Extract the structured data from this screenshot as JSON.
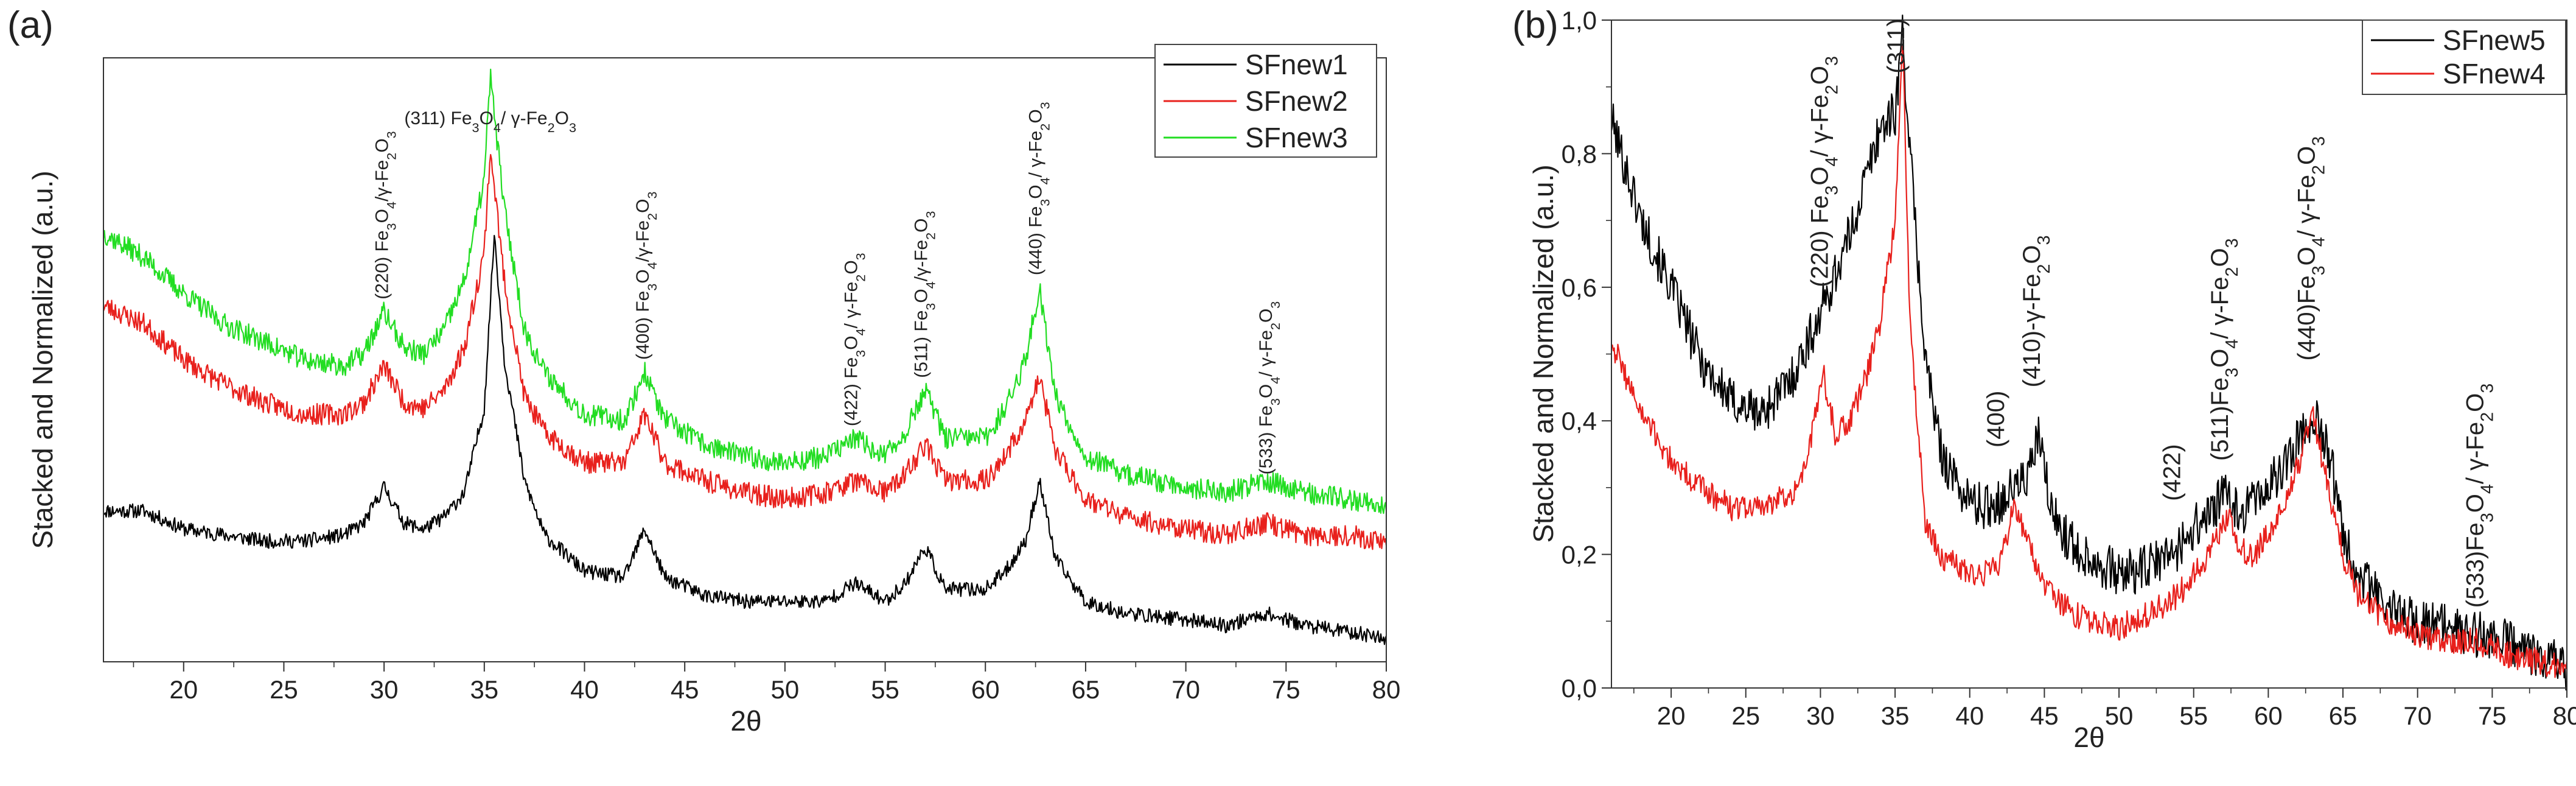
{
  "chart_data": [
    {
      "panel": "(a)",
      "type": "line",
      "xlabel": "2θ",
      "ylabel": "Stacked and Normalized (a.u.)",
      "xlim": [
        16,
        80
      ],
      "ylim": [
        0,
        1
      ],
      "x_ticks": [
        "20",
        "25",
        "30",
        "35",
        "40",
        "45",
        "50",
        "55",
        "60",
        "65",
        "70",
        "75",
        "80"
      ],
      "y_ticks": [],
      "legend_position": "top-right",
      "series": [
        {
          "name": "SFnew1",
          "color": "#000000",
          "x": [
            16,
            18,
            20,
            22,
            24,
            26,
            28,
            29,
            30,
            31,
            32,
            33,
            34,
            35,
            35.5,
            36,
            37,
            38,
            40,
            42,
            43,
            44,
            46,
            48,
            50,
            52,
            53.5,
            55,
            56,
            57,
            58,
            60,
            61,
            62,
            62.7,
            63.5,
            65,
            67,
            70,
            72,
            74,
            76,
            78,
            80
          ],
          "y": [
            0.25,
            0.25,
            0.22,
            0.21,
            0.2,
            0.2,
            0.21,
            0.23,
            0.29,
            0.23,
            0.22,
            0.24,
            0.28,
            0.42,
            0.71,
            0.5,
            0.3,
            0.21,
            0.15,
            0.14,
            0.22,
            0.14,
            0.11,
            0.1,
            0.1,
            0.1,
            0.13,
            0.1,
            0.13,
            0.19,
            0.12,
            0.12,
            0.15,
            0.2,
            0.3,
            0.17,
            0.1,
            0.08,
            0.07,
            0.06,
            0.08,
            0.06,
            0.05,
            0.04
          ]
        },
        {
          "name": "SFnew2",
          "color": "#e8201c",
          "x": [
            16,
            18,
            20,
            22,
            24,
            26,
            28,
            29,
            30,
            31,
            32,
            33,
            34,
            35,
            35.3,
            36,
            37,
            38,
            40,
            42,
            43,
            44,
            46,
            48,
            50,
            52,
            53.5,
            55,
            56,
            57,
            58,
            60,
            61,
            62,
            62.7,
            63.5,
            65,
            67,
            70,
            72,
            74,
            76,
            78,
            80
          ],
          "y": [
            0.59,
            0.56,
            0.5,
            0.46,
            0.43,
            0.41,
            0.41,
            0.43,
            0.49,
            0.43,
            0.42,
            0.45,
            0.52,
            0.68,
            0.85,
            0.63,
            0.44,
            0.38,
            0.33,
            0.33,
            0.41,
            0.33,
            0.3,
            0.28,
            0.27,
            0.28,
            0.3,
            0.28,
            0.31,
            0.36,
            0.3,
            0.3,
            0.34,
            0.4,
            0.47,
            0.35,
            0.27,
            0.24,
            0.22,
            0.21,
            0.23,
            0.21,
            0.21,
            0.2
          ]
        },
        {
          "name": "SFnew3",
          "color": "#22dd22",
          "x": [
            16,
            18,
            20,
            22,
            24,
            26,
            28,
            29,
            30,
            31,
            32,
            33,
            34,
            35,
            35.3,
            36,
            37,
            38,
            40,
            42,
            43,
            44,
            46,
            48,
            50,
            52,
            53.5,
            55,
            56,
            57,
            58,
            60,
            61,
            62,
            62.7,
            63.5,
            65,
            67,
            70,
            72,
            74,
            76,
            78,
            80
          ],
          "y": [
            0.71,
            0.67,
            0.61,
            0.56,
            0.53,
            0.5,
            0.49,
            0.51,
            0.58,
            0.52,
            0.51,
            0.55,
            0.63,
            0.8,
            0.97,
            0.75,
            0.55,
            0.48,
            0.41,
            0.4,
            0.48,
            0.4,
            0.36,
            0.34,
            0.33,
            0.34,
            0.37,
            0.34,
            0.38,
            0.45,
            0.37,
            0.37,
            0.42,
            0.5,
            0.62,
            0.44,
            0.34,
            0.31,
            0.29,
            0.28,
            0.3,
            0.28,
            0.27,
            0.26
          ]
        }
      ],
      "annotations": [
        {
          "text": "(220) Fe3O4/γ-Fe2O3",
          "x": 30.2,
          "y": 0.6,
          "rotate": true
        },
        {
          "text": "(311) Fe3O4/ γ-Fe2O3",
          "x": 35.3,
          "y": 0.89,
          "rotate": false
        },
        {
          "text": "(400) Fe3O4/γ-Fe2O3",
          "x": 43.2,
          "y": 0.5,
          "rotate": true
        },
        {
          "text": "(422) Fe3O4/ γ-Fe2O3",
          "x": 53.6,
          "y": 0.39,
          "rotate": true
        },
        {
          "text": "(511) Fe3O4/γ-Fe2O3",
          "x": 57.1,
          "y": 0.47,
          "rotate": true
        },
        {
          "text": "(440) Fe3O4/ γ-Fe2O3",
          "x": 62.8,
          "y": 0.64,
          "rotate": true
        },
        {
          "text": "(533) Fe3O4/ γ-Fe2O3",
          "x": 74.3,
          "y": 0.31,
          "rotate": true
        }
      ]
    },
    {
      "panel": "(b)",
      "type": "line",
      "xlabel": "2θ",
      "ylabel": "Stacked and Normalized  (a.u.)",
      "xlim": [
        16,
        80
      ],
      "ylim": [
        0,
        1
      ],
      "x_ticks": [
        "20",
        "25",
        "30",
        "35",
        "40",
        "45",
        "50",
        "55",
        "60",
        "65",
        "70",
        "75",
        "80"
      ],
      "y_ticks": [
        "0,0",
        "0,2",
        "0,4",
        "0,6",
        "0,8",
        "1,0"
      ],
      "legend_position": "top-right",
      "series": [
        {
          "name": "SFnew5",
          "color": "#000000",
          "x": [
            16,
            18,
            20,
            22,
            24,
            26,
            28,
            30,
            32,
            33,
            34,
            35,
            35.5,
            36,
            37,
            38,
            39,
            40,
            41,
            42,
            43,
            44,
            44.6,
            45.5,
            47,
            50,
            52,
            54,
            55,
            56,
            57.2,
            58,
            59,
            60,
            61,
            62,
            63,
            64,
            65,
            66,
            68,
            70,
            72,
            74,
            76,
            78,
            80
          ],
          "y": [
            0.85,
            0.7,
            0.6,
            0.49,
            0.43,
            0.41,
            0.46,
            0.56,
            0.68,
            0.76,
            0.84,
            0.86,
            0.98,
            0.8,
            0.5,
            0.36,
            0.31,
            0.28,
            0.27,
            0.28,
            0.3,
            0.32,
            0.38,
            0.26,
            0.21,
            0.17,
            0.18,
            0.21,
            0.24,
            0.26,
            0.29,
            0.26,
            0.28,
            0.3,
            0.33,
            0.37,
            0.41,
            0.36,
            0.24,
            0.17,
            0.12,
            0.1,
            0.09,
            0.08,
            0.07,
            0.05,
            0.03
          ]
        },
        {
          "name": "SFnew4",
          "color": "#e8201c",
          "x": [
            16,
            18,
            20,
            22,
            24,
            26,
            28,
            29,
            30.2,
            31,
            32,
            33,
            34,
            35,
            35.5,
            36,
            37,
            38,
            40,
            41,
            42,
            43,
            44,
            45,
            47,
            50,
            52,
            54,
            55,
            56,
            57.3,
            58,
            59,
            60,
            61,
            62,
            63,
            64,
            65,
            66,
            68,
            70,
            72,
            74,
            76,
            78,
            80
          ],
          "y": [
            0.52,
            0.41,
            0.34,
            0.3,
            0.27,
            0.27,
            0.29,
            0.33,
            0.47,
            0.38,
            0.4,
            0.46,
            0.55,
            0.7,
            0.98,
            0.55,
            0.25,
            0.2,
            0.17,
            0.17,
            0.19,
            0.27,
            0.22,
            0.15,
            0.11,
            0.09,
            0.11,
            0.14,
            0.17,
            0.2,
            0.26,
            0.21,
            0.2,
            0.23,
            0.28,
            0.33,
            0.41,
            0.3,
            0.2,
            0.14,
            0.1,
            0.08,
            0.07,
            0.07,
            0.05,
            0.04,
            0.03
          ]
        }
      ],
      "annotations": [
        {
          "text": "(220) Fe3O4/ γ-Fe2O3",
          "x": 30.5,
          "y": 0.6
        },
        {
          "text": "(311)",
          "x": 35.6,
          "y": 0.92
        },
        {
          "text": "(400)",
          "x": 42.3,
          "y": 0.36
        },
        {
          "text": "(410)-γ-Fe2O3",
          "x": 44.7,
          "y": 0.45
        },
        {
          "text": "(422)",
          "x": 54.1,
          "y": 0.28
        },
        {
          "text": "(511)Fe3O4/ γ-Fe2O3",
          "x": 57.3,
          "y": 0.34
        },
        {
          "text": "(440)Fe3O4/ γ-Fe2O3",
          "x": 63.1,
          "y": 0.49
        },
        {
          "text": "(533)Fe3O4/ γ-Fe2O3",
          "x": 74.4,
          "y": 0.12
        }
      ]
    }
  ]
}
